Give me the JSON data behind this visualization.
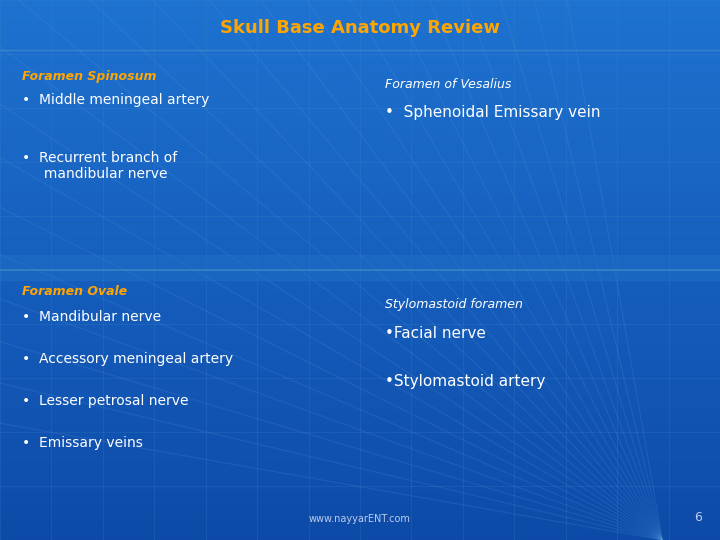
{
  "title": "Skull Base Anatomy Review",
  "title_color": "#FFA500",
  "title_fontsize": 13,
  "bg_color": "#1B6CC8",
  "bg_color_mid": "#1A68C2",
  "section1_header": "Foramen Spinosum",
  "section1_items": [
    "Middle meningeal artery",
    "Recurrent branch of\n     mandibular nerve"
  ],
  "section2_header": "Foramen of Vesalius",
  "section2_items": [
    "Sphenoidal Emissary vein"
  ],
  "section3_header": "Foramen Ovale",
  "section3_items": [
    "Mandibular nerve",
    "Accessory meningeal artery",
    "Lesser petrosal nerve",
    "Emissary veins"
  ],
  "section4_header": "Stylomastoid foramen",
  "section4_items": [
    "Facial nerve",
    "Stylomastoid artery"
  ],
  "footer_text": "www.nayyarENT.com",
  "footer_page": "6",
  "header_color": "#FFA500",
  "white": "#FFFFFF",
  "grid_color": "#4488CC",
  "grid_alpha": 0.25
}
